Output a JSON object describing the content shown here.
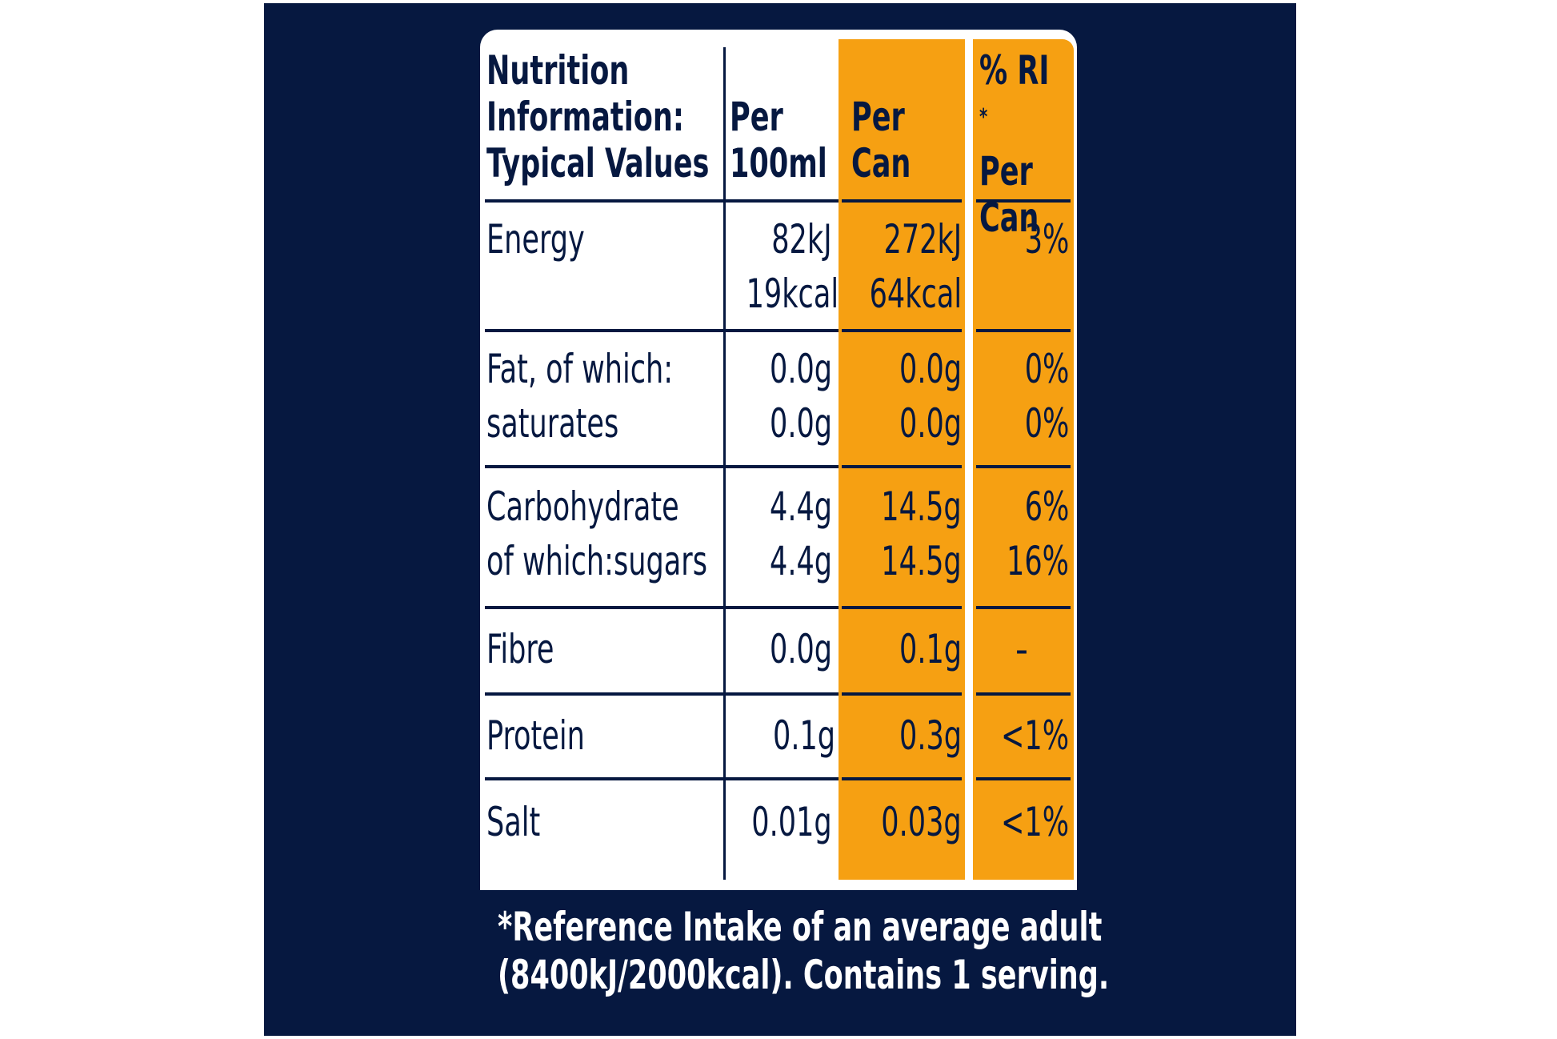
{
  "header": {
    "col1": [
      "Nutrition",
      "Information:",
      "Typical Values"
    ],
    "col2": [
      "Per",
      "100ml"
    ],
    "col3": [
      "Per",
      "Can"
    ],
    "col4": [
      "% RI",
      "*",
      "Per",
      "Can"
    ]
  },
  "rows": [
    {
      "name": [
        "Energy"
      ],
      "per100": [
        "82kJ",
        "19kcal"
      ],
      "perCan": [
        "272kJ",
        "64kcal"
      ],
      "ri": [
        "3%"
      ]
    },
    {
      "name": [
        "Fat, of which:",
        "saturates"
      ],
      "per100": [
        "0.0g",
        "0.0g"
      ],
      "perCan": [
        "0.0g",
        "0.0g"
      ],
      "ri": [
        "0%",
        "0%"
      ]
    },
    {
      "name": [
        "Carbohydrate",
        "of which:sugars"
      ],
      "per100": [
        "4.4g",
        "4.4g"
      ],
      "perCan": [
        "14.5g",
        "14.5g"
      ],
      "ri": [
        "6%",
        "16%"
      ]
    },
    {
      "name": [
        "Fibre"
      ],
      "per100": [
        "0.0g"
      ],
      "perCan": [
        "0.1g"
      ],
      "ri": [
        "-"
      ]
    },
    {
      "name": [
        "Protein"
      ],
      "per100": [
        "0.1g"
      ],
      "perCan": [
        "0.3g"
      ],
      "ri": [
        "<1%"
      ]
    },
    {
      "name": [
        "Salt"
      ],
      "per100": [
        "0.01g"
      ],
      "perCan": [
        "0.03g"
      ],
      "ri": [
        "<1%"
      ]
    }
  ],
  "footnote": [
    "*Reference Intake of an average adult",
    "(8400kJ/2000kcal). Contains 1 serving."
  ],
  "colors": {
    "navy": "#061840",
    "orange": "#f6a012",
    "white": "#ffffff"
  }
}
